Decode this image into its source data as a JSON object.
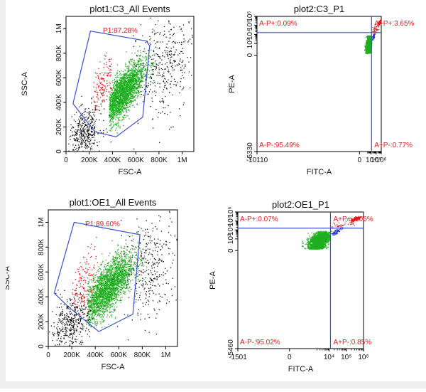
{
  "colors": {
    "gate": "#3a4fd6",
    "red": "#e31a1c",
    "green": "#1fae1f",
    "blue": "#2233dd",
    "black": "#111111"
  },
  "chart_data": [
    {
      "type": "scatter",
      "title": "plot1:C3_All Events",
      "xlabel": "FSC-A",
      "ylabel": "SSC-A",
      "xlim": [
        0,
        1100000
      ],
      "ylim": [
        0,
        1100000
      ],
      "xticks": [
        {
          "v": 0,
          "label": "0"
        },
        {
          "v": 200000,
          "label": "200K"
        },
        {
          "v": 400000,
          "label": "400K"
        },
        {
          "v": 600000,
          "label": "600K"
        },
        {
          "v": 800000,
          "label": "800K"
        },
        {
          "v": 1000000,
          "label": "1M"
        }
      ],
      "yticks": [
        {
          "v": 0,
          "label": "0"
        },
        {
          "v": 200000,
          "label": "200K"
        },
        {
          "v": 400000,
          "label": "400K"
        },
        {
          "v": 600000,
          "label": "600K"
        },
        {
          "v": 800000,
          "label": "800K"
        },
        {
          "v": 1000000,
          "label": "1M"
        }
      ],
      "gate": {
        "label": "P1:87.28%",
        "vertices": [
          [
            60000,
            390000
          ],
          [
            210000,
            980000
          ],
          [
            690000,
            900000
          ],
          [
            720000,
            860000
          ],
          [
            660000,
            280000
          ],
          [
            430000,
            120000
          ],
          [
            250000,
            160000
          ],
          [
            60000,
            390000
          ]
        ]
      },
      "clusters": [
        {
          "color": "green",
          "cx": 480000,
          "cy": 470000,
          "sx": 95000,
          "sy": 130000,
          "rho": 0.75,
          "n": 2600,
          "xmin": 370000,
          "xmax": 950000,
          "ymin": 150000,
          "ymax": 900000
        },
        {
          "color": "red",
          "cx": 300000,
          "cy": 520000,
          "sx": 50000,
          "sy": 140000,
          "rho": 0.6,
          "n": 180,
          "xmin": 230000,
          "xmax": 400000,
          "ymin": 280000,
          "ymax": 860000
        },
        {
          "color": "black",
          "cx": 160000,
          "cy": 150000,
          "sx": 70000,
          "sy": 100000,
          "rho": 0.3,
          "n": 420
        },
        {
          "color": "black",
          "cx": 850000,
          "cy": 700000,
          "sx": 120000,
          "sy": 220000,
          "rho": 0.2,
          "n": 380
        }
      ]
    },
    {
      "type": "scatter",
      "title": "plot2:C3_P1",
      "xlabel": "FITC-A",
      "ylabel": "PE-A",
      "scale": "biexponential",
      "xlim": [
        -10110,
        1000000
      ],
      "ylim": [
        -5330,
        1000000
      ],
      "xticks": [
        {
          "v": -10110,
          "label": "-10110"
        },
        {
          "v": 0,
          "label": "0"
        },
        {
          "v": 10000,
          "label": "10⁴"
        },
        {
          "v": 100000,
          "label": "10⁵"
        },
        {
          "v": 1000000,
          "label": "10⁶"
        }
      ],
      "yticks": [
        {
          "v": -5330,
          "label": "-5330"
        },
        {
          "v": 0,
          "label": "0"
        },
        {
          "v": 1000,
          "label": "10³"
        },
        {
          "v": 10000,
          "label": "10⁴"
        },
        {
          "v": 100000,
          "label": "10⁵"
        },
        {
          "v": 1000000,
          "label": "10⁶"
        }
      ],
      "quadrant_divider": {
        "x": 12000,
        "y": 16000
      },
      "quadrants": [
        {
          "label": "A-P+:0.09%",
          "pos": "top-left"
        },
        {
          "label": "A+P+:3.65%",
          "pos": "top-right"
        },
        {
          "label": "A-P-:95.49%",
          "pos": "bottom-left"
        },
        {
          "label": "A+P-:0.77%",
          "pos": "bottom-right"
        }
      ],
      "clusters": [
        {
          "color": "green",
          "cx": 3000,
          "cy": 900,
          "sx": 1800,
          "sy": 900,
          "rho": 0.45,
          "n": 2400,
          "xmin": 300,
          "xmax": 11000,
          "ymin": 120,
          "ymax": 8000
        },
        {
          "color": "red",
          "cx": 400000,
          "cy": 220000,
          "sx": 120000,
          "sy": 70000,
          "rho": 0.7,
          "n": 150,
          "xmin": 14000,
          "xmax": 900000,
          "ymin": 18000,
          "ymax": 900000
        },
        {
          "color": "red",
          "cx": 60000,
          "cy": 45000,
          "sx": 60000,
          "sy": 30000,
          "rho": 0.6,
          "n": 40,
          "xmin": 13000,
          "xmax": 400000,
          "ymin": 17000,
          "ymax": 300000
        },
        {
          "color": "blue",
          "cx": 25000,
          "cy": 7000,
          "sx": 9000,
          "sy": 3500,
          "rho": 0.7,
          "n": 55,
          "xmin": 13000,
          "xmax": 90000,
          "ymin": 1500,
          "ymax": 15000
        }
      ]
    },
    {
      "type": "scatter",
      "title": "plot1:OE1_All Events",
      "xlabel": "FSC-A",
      "ylabel": "SSC-A",
      "xlim": [
        0,
        1100000
      ],
      "ylim": [
        0,
        1100000
      ],
      "xticks": [
        {
          "v": 0,
          "label": "0"
        },
        {
          "v": 200000,
          "label": "200K"
        },
        {
          "v": 400000,
          "label": "400K"
        },
        {
          "v": 600000,
          "label": "600K"
        },
        {
          "v": 800000,
          "label": "800K"
        },
        {
          "v": 1000000,
          "label": "1M"
        }
      ],
      "yticks": [
        {
          "v": 0,
          "label": "0"
        },
        {
          "v": 200000,
          "label": "200K"
        },
        {
          "v": 400000,
          "label": "400K"
        },
        {
          "v": 600000,
          "label": "600K"
        },
        {
          "v": 800000,
          "label": "800K"
        },
        {
          "v": 1000000,
          "label": "1M"
        }
      ],
      "gate": {
        "label": "P1:89.60%",
        "vertices": [
          [
            50000,
            430000
          ],
          [
            220000,
            1000000
          ],
          [
            780000,
            900000
          ],
          [
            720000,
            260000
          ],
          [
            430000,
            120000
          ],
          [
            170000,
            320000
          ],
          [
            50000,
            430000
          ]
        ]
      },
      "clusters": [
        {
          "color": "green",
          "cx": 500000,
          "cy": 470000,
          "sx": 110000,
          "sy": 140000,
          "rho": 0.72,
          "n": 2600,
          "xmin": 330000,
          "xmax": 950000,
          "ymin": 150000,
          "ymax": 950000
        },
        {
          "color": "red",
          "cx": 300000,
          "cy": 500000,
          "sx": 60000,
          "sy": 150000,
          "rho": 0.6,
          "n": 180,
          "xmin": 200000,
          "xmax": 420000,
          "ymin": 250000,
          "ymax": 900000
        },
        {
          "color": "black",
          "cx": 180000,
          "cy": 180000,
          "sx": 80000,
          "sy": 110000,
          "rho": 0.3,
          "n": 420
        },
        {
          "color": "black",
          "cx": 870000,
          "cy": 650000,
          "sx": 120000,
          "sy": 220000,
          "rho": 0.2,
          "n": 340
        }
      ]
    },
    {
      "type": "scatter",
      "title": "plot2:OE1_P1",
      "xlabel": "FITC-A",
      "ylabel": "PE-A",
      "scale": "biexponential",
      "xlim": [
        -1501,
        1000000
      ],
      "ylim": [
        -5460,
        1000000
      ],
      "xticks": [
        {
          "v": -1501,
          "label": "-1501"
        },
        {
          "v": 0,
          "label": "0"
        },
        {
          "v": 10000,
          "label": "10⁴"
        },
        {
          "v": 100000,
          "label": "10⁵"
        },
        {
          "v": 1000000,
          "label": "10⁶"
        }
      ],
      "yticks": [
        {
          "v": -5460,
          "label": "-5460"
        },
        {
          "v": 0,
          "label": "0"
        },
        {
          "v": 1000,
          "label": "10³"
        },
        {
          "v": 10000,
          "label": "10⁴"
        },
        {
          "v": 100000,
          "label": "10⁵"
        },
        {
          "v": 1000000,
          "label": "10⁶"
        }
      ],
      "quadrant_divider": {
        "x": 12000,
        "y": 16000
      },
      "quadrants": [
        {
          "label": "A-P+:0.07%",
          "pos": "top-left"
        },
        {
          "label": "A+P+:4.06%",
          "pos": "top-right"
        },
        {
          "label": "A-P-:95.02%",
          "pos": "bottom-left"
        },
        {
          "label": "A+P-:0.85%",
          "pos": "bottom-right"
        }
      ],
      "clusters": [
        {
          "color": "green",
          "cx": 2600,
          "cy": 800,
          "sx": 1700,
          "sy": 800,
          "rho": 0.45,
          "n": 2400,
          "xmin": 200,
          "xmax": 11000,
          "ymin": 100,
          "ymax": 8000
        },
        {
          "color": "red",
          "cx": 350000,
          "cy": 200000,
          "sx": 120000,
          "sy": 70000,
          "rho": 0.7,
          "n": 160,
          "xmin": 14000,
          "xmax": 900000,
          "ymin": 18000,
          "ymax": 900000
        },
        {
          "color": "red",
          "cx": 50000,
          "cy": 40000,
          "sx": 50000,
          "sy": 25000,
          "rho": 0.6,
          "n": 45,
          "xmin": 13000,
          "xmax": 400000,
          "ymin": 17000,
          "ymax": 300000
        },
        {
          "color": "blue",
          "cx": 22000,
          "cy": 6000,
          "sx": 8000,
          "sy": 3000,
          "rho": 0.7,
          "n": 60,
          "xmin": 13000,
          "xmax": 90000,
          "ymin": 1500,
          "ymax": 15000
        }
      ]
    }
  ]
}
